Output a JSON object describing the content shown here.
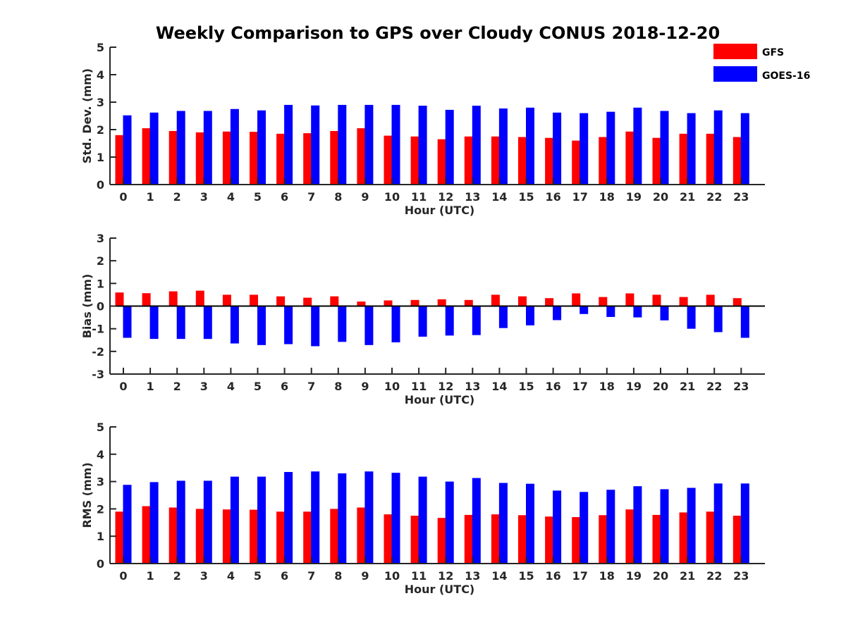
{
  "title": "Weekly Comparison to GPS over Cloudy CONUS 2018-12-20",
  "legend": [
    {
      "name": "GFS",
      "color": "#ff0000"
    },
    {
      "name": "GOES-16",
      "color": "#0000ff"
    }
  ],
  "chart_data": [
    {
      "type": "bar",
      "xlabel": "Hour (UTC)",
      "ylabel": "Std. Dev. (mm)",
      "ylim": [
        0,
        5
      ],
      "yticks": [
        0,
        1,
        2,
        3,
        4,
        5
      ],
      "categories": [
        "0",
        "1",
        "2",
        "3",
        "4",
        "5",
        "6",
        "7",
        "8",
        "9",
        "10",
        "11",
        "12",
        "13",
        "14",
        "15",
        "16",
        "17",
        "18",
        "19",
        "20",
        "21",
        "22",
        "23"
      ],
      "series": [
        {
          "name": "GFS",
          "color": "#ff0000",
          "values": [
            1.8,
            2.05,
            1.95,
            1.9,
            1.93,
            1.92,
            1.85,
            1.87,
            1.95,
            2.05,
            1.78,
            1.75,
            1.65,
            1.75,
            1.75,
            1.73,
            1.7,
            1.6,
            1.73,
            1.93,
            1.7,
            1.85,
            1.85,
            1.73
          ]
        },
        {
          "name": "GOES-16",
          "color": "#0000ff",
          "values": [
            2.52,
            2.62,
            2.68,
            2.68,
            2.75,
            2.7,
            2.9,
            2.88,
            2.9,
            2.9,
            2.9,
            2.87,
            2.72,
            2.87,
            2.77,
            2.8,
            2.62,
            2.6,
            2.65,
            2.8,
            2.68,
            2.6,
            2.7,
            2.6
          ]
        }
      ]
    },
    {
      "type": "bar",
      "xlabel": "Hour (UTC)",
      "ylabel": "Bias (mm)",
      "ylim": [
        -3,
        3
      ],
      "yticks": [
        -3,
        -2,
        -1,
        0,
        1,
        2,
        3
      ],
      "categories": [
        "0",
        "1",
        "2",
        "3",
        "4",
        "5",
        "6",
        "7",
        "8",
        "9",
        "10",
        "11",
        "12",
        "13",
        "14",
        "15",
        "16",
        "17",
        "18",
        "19",
        "20",
        "21",
        "22",
        "23"
      ],
      "series": [
        {
          "name": "GFS",
          "color": "#ff0000",
          "values": [
            0.6,
            0.57,
            0.65,
            0.68,
            0.5,
            0.5,
            0.43,
            0.37,
            0.43,
            0.2,
            0.25,
            0.27,
            0.3,
            0.27,
            0.5,
            0.43,
            0.35,
            0.56,
            0.4,
            0.56,
            0.5,
            0.4,
            0.5,
            0.35
          ]
        },
        {
          "name": "GOES-16",
          "color": "#0000ff",
          "values": [
            -1.4,
            -1.45,
            -1.45,
            -1.45,
            -1.65,
            -1.72,
            -1.68,
            -1.77,
            -1.58,
            -1.72,
            -1.6,
            -1.35,
            -1.3,
            -1.28,
            -0.97,
            -0.85,
            -0.62,
            -0.35,
            -0.48,
            -0.5,
            -0.63,
            -1.0,
            -1.15,
            -1.4
          ]
        }
      ]
    },
    {
      "type": "bar",
      "xlabel": "Hour (UTC)",
      "ylabel": "RMS (mm)",
      "ylim": [
        0,
        5
      ],
      "yticks": [
        0,
        1,
        2,
        3,
        4,
        5
      ],
      "categories": [
        "0",
        "1",
        "2",
        "3",
        "4",
        "5",
        "6",
        "7",
        "8",
        "9",
        "10",
        "11",
        "12",
        "13",
        "14",
        "15",
        "16",
        "17",
        "18",
        "19",
        "20",
        "21",
        "22",
        "23"
      ],
      "series": [
        {
          "name": "GFS",
          "color": "#ff0000",
          "values": [
            1.9,
            2.1,
            2.05,
            2.0,
            1.98,
            1.97,
            1.9,
            1.9,
            2.0,
            2.05,
            1.8,
            1.75,
            1.67,
            1.78,
            1.8,
            1.77,
            1.72,
            1.7,
            1.77,
            1.98,
            1.78,
            1.87,
            1.9,
            1.75
          ]
        },
        {
          "name": "GOES-16",
          "color": "#0000ff",
          "values": [
            2.88,
            2.98,
            3.03,
            3.03,
            3.18,
            3.18,
            3.35,
            3.37,
            3.3,
            3.37,
            3.32,
            3.18,
            3.0,
            3.13,
            2.95,
            2.92,
            2.67,
            2.62,
            2.7,
            2.83,
            2.72,
            2.77,
            2.93,
            2.93
          ]
        }
      ]
    }
  ]
}
